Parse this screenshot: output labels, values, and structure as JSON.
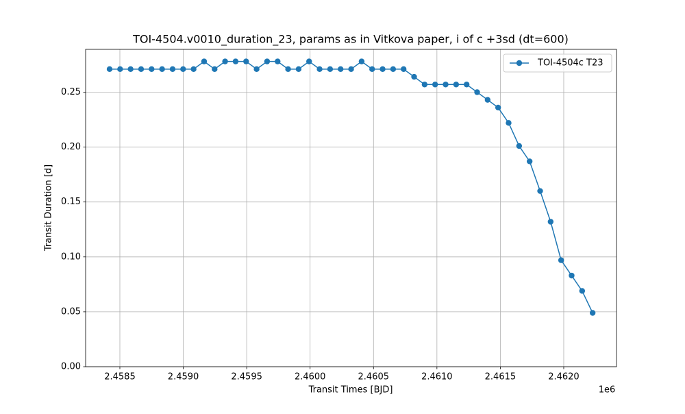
{
  "chart_data": {
    "type": "line",
    "title": "TOI-4504.v0010_duration_23, params as in Vitkova paper, i of c +3sd (dt=600)",
    "xlabel": "Transit Times [BJD]",
    "ylabel": "Transit Duration [d]",
    "x_offset_label": "1e6",
    "x": [
      2458419.0,
      2458501.8,
      2458584.6,
      2458667.4,
      2458750.2,
      2458833.0,
      2458915.8,
      2458998.6,
      2459081.4,
      2459164.2,
      2459247.0,
      2459329.8,
      2459412.6,
      2459495.4,
      2459578.2,
      2459661.0,
      2459743.8,
      2459826.6,
      2459909.4,
      2459992.2,
      2460075.0,
      2460157.8,
      2460240.6,
      2460323.4,
      2460406.2,
      2460489.0,
      2460571.8,
      2460654.6,
      2460737.4,
      2460820.2,
      2460903.0,
      2460985.8,
      2461068.6,
      2461151.4,
      2461234.2,
      2461317.0,
      2461399.8,
      2461482.6,
      2461565.4,
      2461648.2,
      2461731.0,
      2461813.8,
      2461896.6,
      2461979.4,
      2462062.2,
      2462145.0,
      2462227.8
    ],
    "series": [
      {
        "name": "TOI-4504c T23",
        "color": "#1f77b4",
        "values": [
          0.271,
          0.271,
          0.271,
          0.271,
          0.271,
          0.271,
          0.271,
          0.271,
          0.271,
          0.278,
          0.271,
          0.278,
          0.278,
          0.278,
          0.271,
          0.278,
          0.278,
          0.271,
          0.271,
          0.278,
          0.271,
          0.271,
          0.271,
          0.271,
          0.278,
          0.271,
          0.271,
          0.271,
          0.271,
          0.264,
          0.257,
          0.257,
          0.257,
          0.257,
          0.257,
          0.25,
          0.243,
          0.236,
          0.222,
          0.201,
          0.187,
          0.16,
          0.132,
          0.097,
          0.083,
          0.069,
          0.049
        ]
      }
    ],
    "xlim": [
      2458230,
      2462416
    ],
    "xticks": [
      {
        "value": 2458500,
        "label": "2.4585"
      },
      {
        "value": 2459000,
        "label": "2.4590"
      },
      {
        "value": 2459500,
        "label": "2.4595"
      },
      {
        "value": 2460000,
        "label": "2.4600"
      },
      {
        "value": 2460500,
        "label": "2.4605"
      },
      {
        "value": 2461000,
        "label": "2.4610"
      },
      {
        "value": 2461500,
        "label": "2.4615"
      },
      {
        "value": 2462000,
        "label": "2.4620"
      }
    ],
    "ylim": [
      0,
      0.289
    ],
    "yticks": [
      {
        "value": 0,
        "label": "0.00"
      },
      0.05,
      {
        "value": 0.1,
        "label": "0.10"
      },
      0.15,
      {
        "value": 0.2,
        "label": "0.20"
      },
      0.25
    ],
    "grid": true,
    "legend": "upper right",
    "marker": "o"
  }
}
